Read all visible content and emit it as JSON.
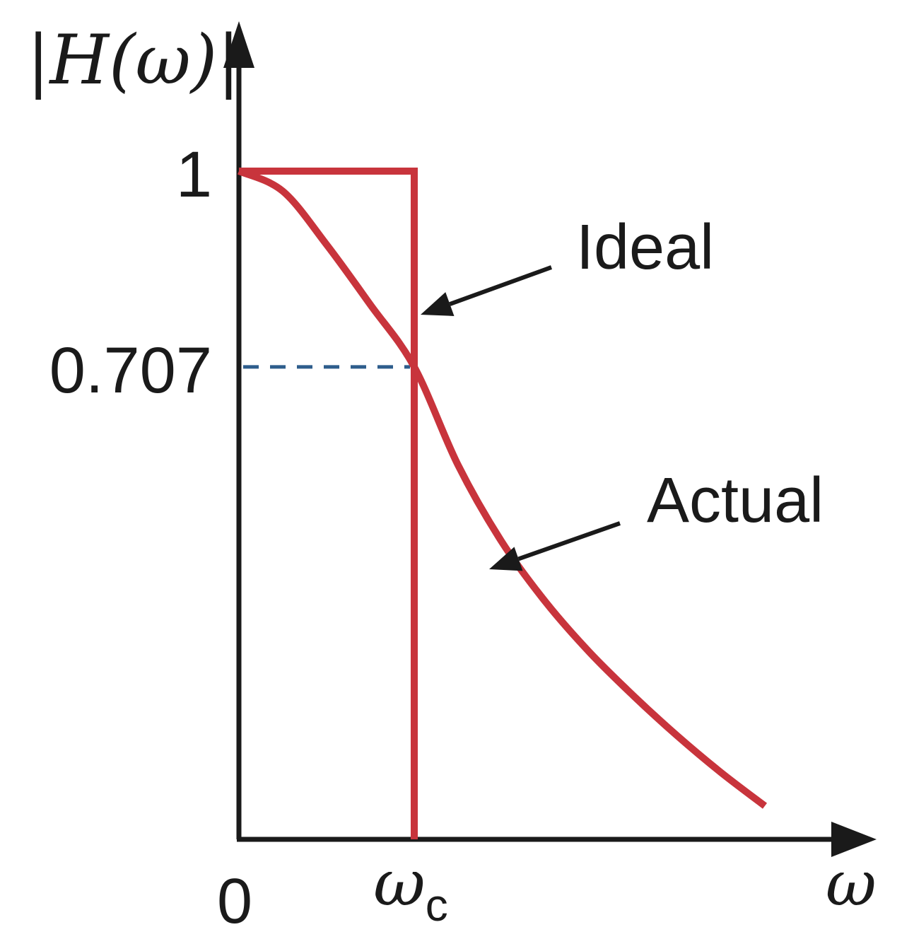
{
  "chart_data": {
    "type": "line",
    "ylabel": "|H(ω)|",
    "xlabel": "ω",
    "x_ticks": [
      {
        "value": 0,
        "label": "0"
      },
      {
        "value": 1,
        "label": "ω",
        "subscript": "c"
      }
    ],
    "y_ticks": [
      {
        "value": 1,
        "label": "1"
      },
      {
        "value": 0.707,
        "label": "0.707"
      }
    ],
    "xlim": [
      0,
      3.7
    ],
    "ylim": [
      0,
      1.2
    ],
    "grid": false,
    "reference_line": {
      "y": 0.707,
      "x_range": [
        0,
        1
      ],
      "style": "dashed",
      "color": "#2e5d8c"
    },
    "series": [
      {
        "name": "Ideal",
        "color": "#c8343c",
        "x": [
          0,
          1,
          1
        ],
        "y": [
          1,
          1,
          0
        ]
      },
      {
        "name": "Actual",
        "color": "#c8343c",
        "x": [
          0,
          0.25,
          0.5,
          0.75,
          1.0,
          1.25,
          1.5,
          1.75,
          2.0,
          2.25,
          2.5,
          2.75,
          3.0
        ],
        "y": [
          1.0,
          0.97,
          0.89,
          0.8,
          0.707,
          0.56,
          0.445,
          0.355,
          0.28,
          0.215,
          0.155,
          0.1,
          0.05
        ]
      }
    ],
    "annotations": [
      {
        "text": "Ideal",
        "target_series": "Ideal"
      },
      {
        "text": "Actual",
        "target_series": "Actual"
      }
    ],
    "colors": {
      "axis": "#1a1a1a",
      "curve": "#c8343c",
      "dash": "#2e5d8c"
    }
  }
}
